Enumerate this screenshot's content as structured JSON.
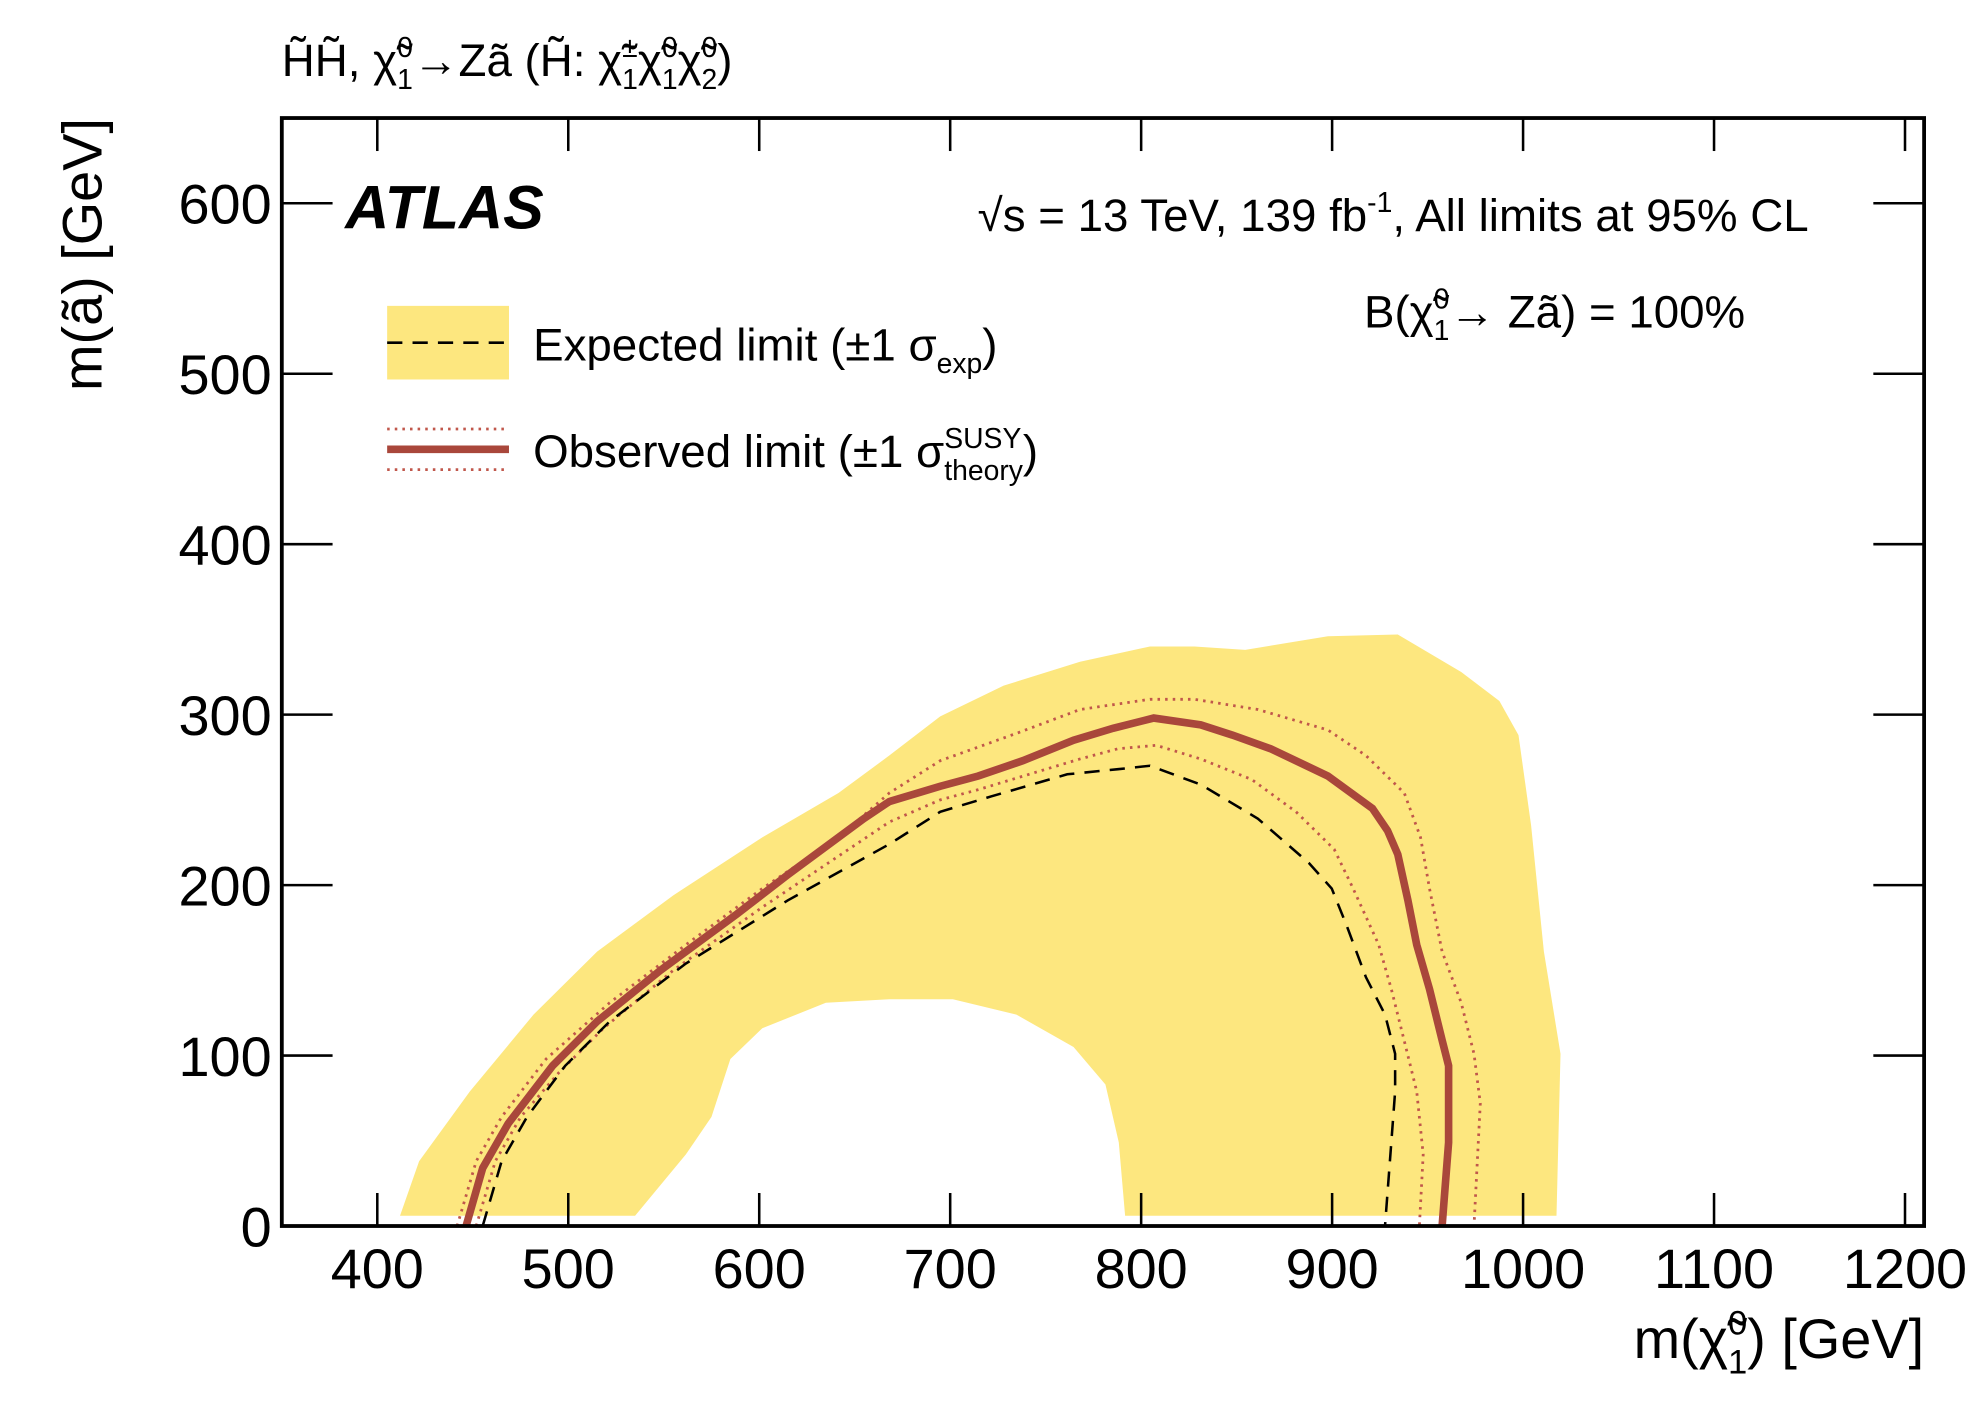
{
  "chart_data": {
    "type": "contour",
    "title_parts": [
      {
        "text": "H̃H̃, χ̃"
      },
      {
        "text": "1",
        "pos": "sub"
      },
      {
        "text": "0",
        "pos": "sup",
        "stack": true
      },
      {
        "text": "→Zã (H̃: χ̃"
      },
      {
        "text": "1",
        "pos": "sub"
      },
      {
        "text": "±",
        "pos": "sup",
        "stack": true
      },
      {
        "text": "χ̃"
      },
      {
        "text": "1",
        "pos": "sub"
      },
      {
        "text": "0",
        "pos": "sup",
        "stack": true
      },
      {
        "text": "χ̃"
      },
      {
        "text": "2",
        "pos": "sub"
      },
      {
        "text": "0",
        "pos": "sup",
        "stack": true
      },
      {
        "text": ")"
      }
    ],
    "x_label_parts": [
      {
        "text": "m(χ̃"
      },
      {
        "text": "1",
        "pos": "sub"
      },
      {
        "text": "0",
        "pos": "sup",
        "stack": true
      },
      {
        "text": ") [GeV]"
      }
    ],
    "y_label": "m(ã) [GeV]",
    "experiment": "ATLAS",
    "energy_parts": [
      {
        "text": "√s = 13 TeV, 139 fb"
      },
      {
        "text": "-1",
        "pos": "sup"
      },
      {
        "text": ", All limits at 95% CL"
      }
    ],
    "br_parts": [
      {
        "text": "B(χ̃"
      },
      {
        "text": "1",
        "pos": "sub"
      },
      {
        "text": "0",
        "pos": "sup",
        "stack": true
      },
      {
        "text": " → Zã) = 100%"
      }
    ],
    "xlim": [
      350,
      1210
    ],
    "ylim": [
      0,
      650
    ],
    "xticks": [
      400,
      500,
      600,
      700,
      800,
      900,
      1000,
      1100,
      1200
    ],
    "yticks": [
      0,
      100,
      200,
      300,
      400,
      500,
      600
    ],
    "series": [
      {
        "name_parts": [
          {
            "text": "Expected limit (±1 σ"
          },
          {
            "text": "exp",
            "pos": "sub"
          },
          {
            "text": ")"
          }
        ],
        "color": "#000000",
        "line_style": "dashed",
        "band_color": "#fde77f",
        "x": [
          455.2,
          465.1,
          478.4,
          498.4,
          521.7,
          561.6,
          614.9,
          668.1,
          694.8,
          721.4,
          761.3,
          787.9,
          804.6,
          831.2,
          861.1,
          887.8,
          899.8,
          907.7,
          917.7,
          927.7,
          933,
          933,
          931,
          927.7
        ],
        "y": [
          0,
          38,
          64,
          94,
          120,
          154,
          191,
          224,
          243,
          252,
          265,
          268,
          270,
          259,
          239,
          213,
          198,
          176,
          146,
          124,
          101,
          79,
          49,
          0
        ],
        "band": {
          "x": [
            411.9,
            421.9,
            448.5,
            481.8,
            515.1,
            555,
            601.6,
            641.5,
            668.1,
            694.8,
            728,
            768,
            804.6,
            827.9,
            854.5,
            897.8,
            934.4,
            967.6,
            987.6,
            997.6,
            1004.2,
            1010.9,
            1019.6,
            1017.5,
            791.6,
            788.3,
            781.3,
            764.6,
            734.7,
            701.4,
            668.1,
            634.9,
            601.6,
            584.9,
            575,
            561.6,
            535
          ],
          "y": [
            6,
            38,
            79,
            124,
            161,
            194,
            228,
            254,
            276,
            299,
            317,
            331,
            340,
            340,
            338,
            346,
            347,
            325,
            308,
            288,
            235,
            161,
            101,
            6,
            6,
            49,
            83,
            105,
            124,
            133,
            133,
            131,
            116,
            98,
            64,
            42,
            6
          ]
        }
      },
      {
        "name_parts": [
          {
            "text": "Observed limit (±1 σ"
          },
          {
            "text": "theory",
            "pos": "sub"
          },
          {
            "text": "SUSY",
            "pos": "sup",
            "stack": true
          },
          {
            "text": ")"
          }
        ],
        "color": "#a9473b",
        "line_style": "solid",
        "band_line_color": "#c0574b",
        "x": [
          446.5,
          455.2,
          468.5,
          491.8,
          515.1,
          548.3,
          588.3,
          614.9,
          654.8,
          668.1,
          694.8,
          714.7,
          738.1,
          764.6,
          785.3,
          806.6,
          831.2,
          847.8,
          867.8,
          897.8,
          921.1,
          929,
          934.4,
          939.7,
          944.3,
          951,
          957.6,
          961,
          961,
          957.6
        ],
        "y": [
          0,
          34,
          60,
          94,
          120,
          150,
          183,
          206,
          239,
          249,
          258,
          264,
          273,
          285,
          292,
          298,
          294,
          288,
          280,
          264,
          245,
          232,
          218,
          191,
          165,
          139,
          109,
          94,
          49,
          0
        ],
        "band_lines": [
          {
            "x": [
              441.8,
              451.8,
              465.1,
              488.4,
              521.7,
              561.6,
              601.6,
              641.5,
              668.1,
              694.8,
              734.7,
              768,
              804.6,
              827.9,
              861.1,
              897.8,
              917.7,
              937.8,
              946.3,
              951,
              957.6,
              967.6,
              974.3,
              977.6,
              974.3
            ],
            "y": [
              0,
              38,
              64,
              98,
              131,
              165,
              198,
              228,
              254,
              273,
              289,
              303,
              309,
              309,
              303,
              291,
              276,
              254,
              228,
              198,
              161,
              131,
              101,
              72,
              0
            ]
          },
          {
            "x": [
              451.8,
              461.8,
              475.1,
              495.1,
              518.4,
              555,
              601.6,
              641.5,
              668.1,
              694.8,
              714.7,
              741.3,
              768,
              787.9,
              807.9,
              831.2,
              857.8,
              881.1,
              901.1,
              911,
              924.4,
              931,
              937.7,
              944.3,
              947.7,
              945.7
            ],
            "y": [
              0,
              38,
              64,
              90,
              116,
              150,
              187,
              217,
              237,
              250,
              256,
              265,
              274,
              280,
              282,
              274,
              262,
              243,
              221,
              198,
              165,
              139,
              109,
              79,
              42,
              0
            ]
          }
        ]
      }
    ]
  }
}
